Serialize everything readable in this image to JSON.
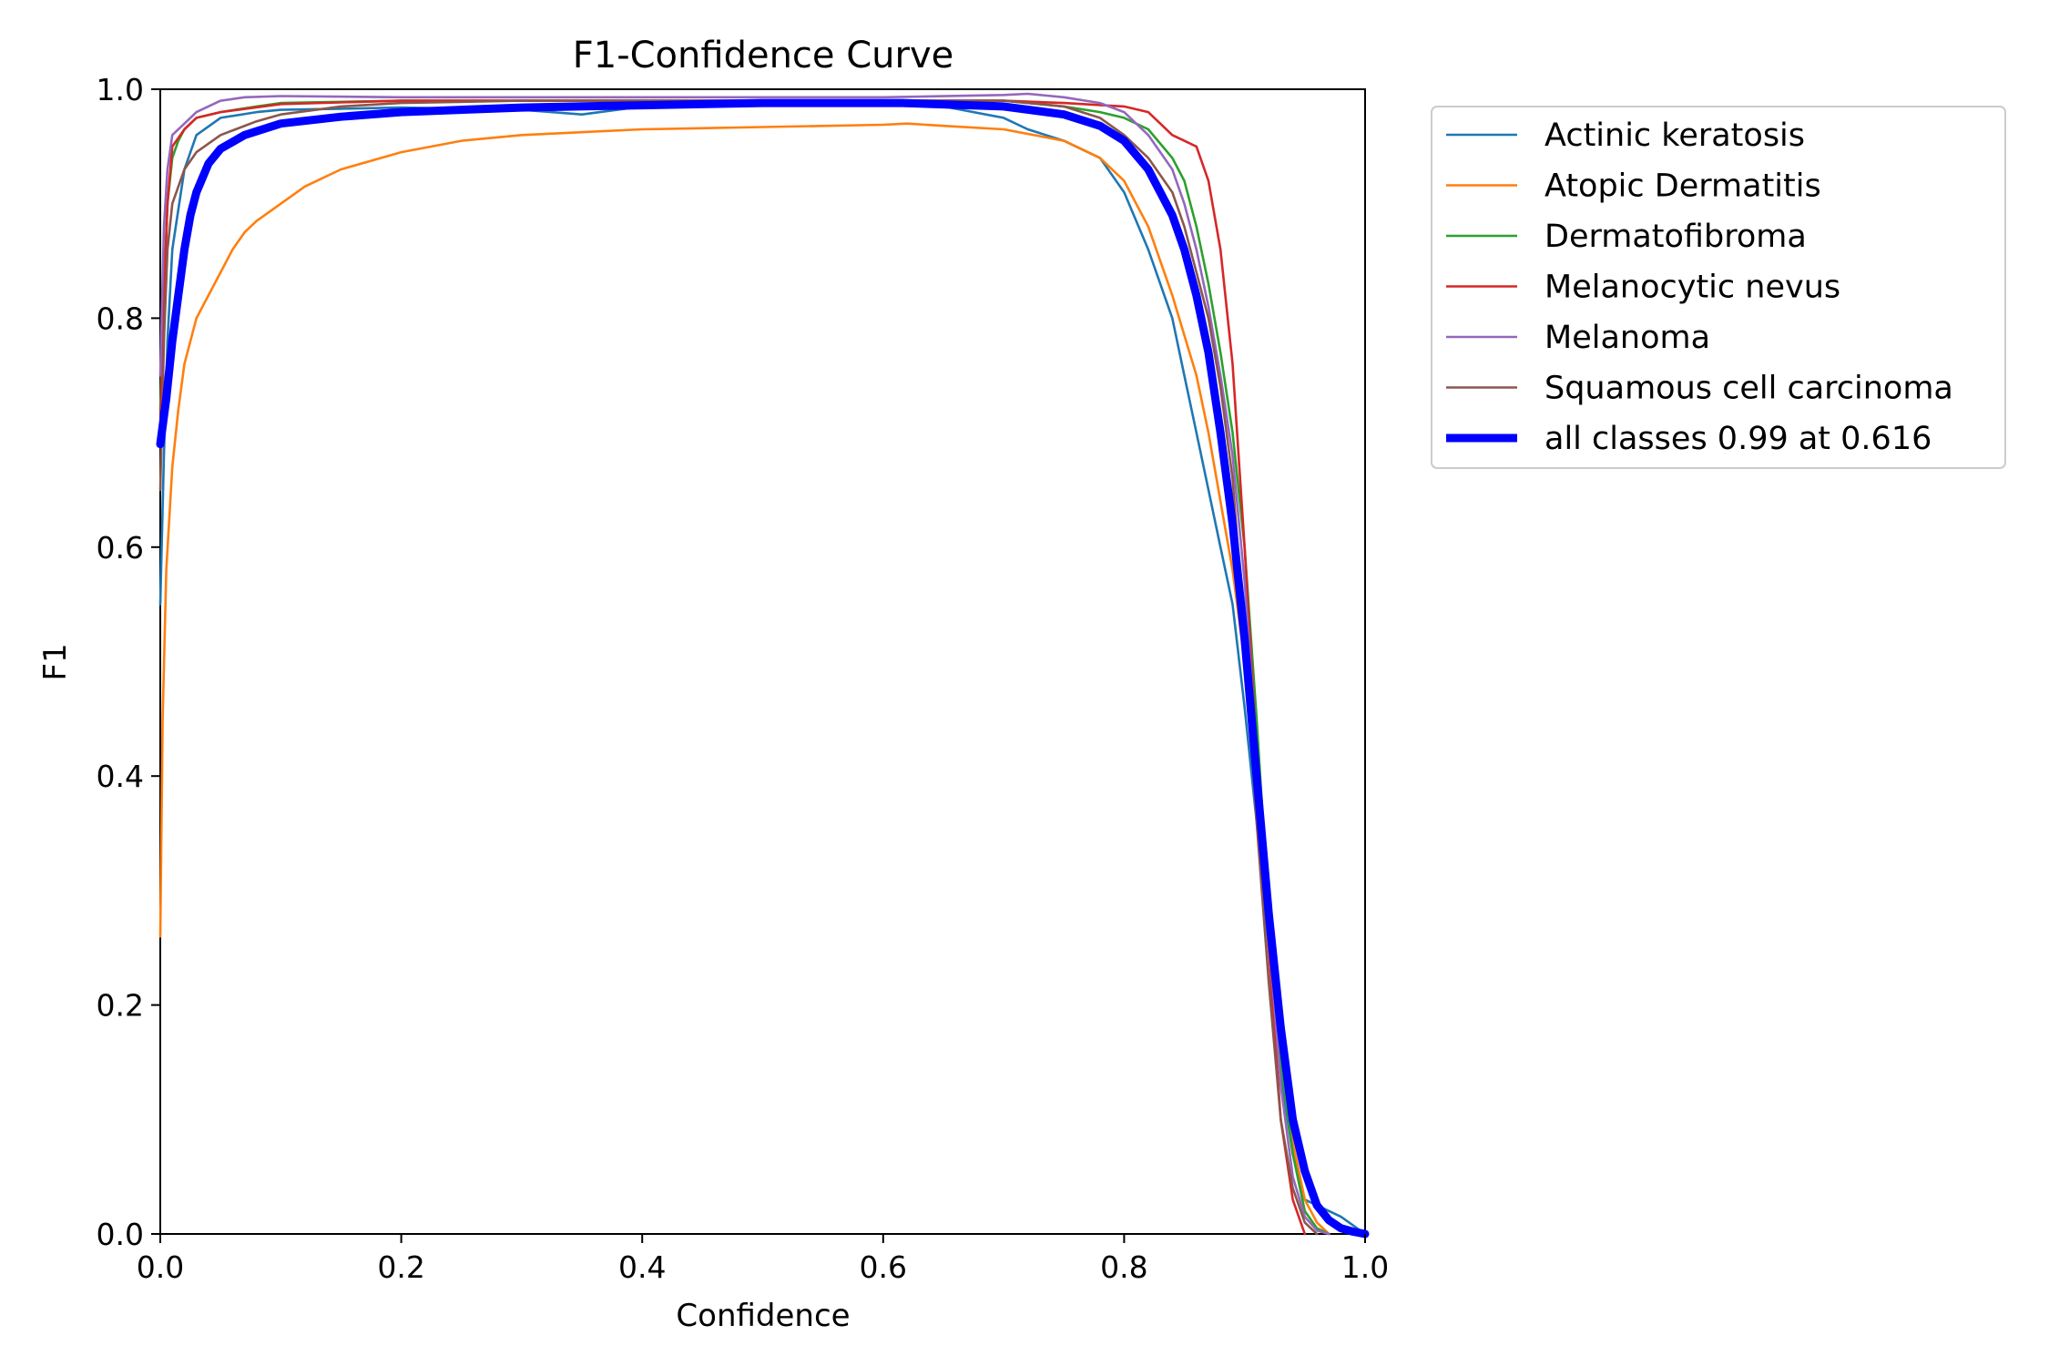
{
  "chart_data": {
    "type": "line",
    "title": "F1-Confidence Curve",
    "xlabel": "Confidence",
    "ylabel": "F1",
    "xlim": [
      0.0,
      1.0
    ],
    "ylim": [
      0.0,
      1.0
    ],
    "xticks": [
      "0.0",
      "0.2",
      "0.4",
      "0.6",
      "0.8",
      "1.0"
    ],
    "yticks": [
      "0.0",
      "0.2",
      "0.4",
      "0.6",
      "0.8",
      "1.0"
    ],
    "grid": false,
    "legend_position": "outside-top-right",
    "series": [
      {
        "name": "Actinic keratosis",
        "color": "#1f77b4",
        "x": [
          0.0,
          0.003,
          0.006,
          0.01,
          0.02,
          0.03,
          0.05,
          0.08,
          0.1,
          0.15,
          0.2,
          0.3,
          0.35,
          0.4,
          0.5,
          0.6,
          0.65,
          0.7,
          0.72,
          0.75,
          0.78,
          0.8,
          0.82,
          0.84,
          0.85,
          0.86,
          0.87,
          0.88,
          0.89,
          0.9,
          0.91,
          0.92,
          0.93,
          0.94,
          0.95,
          0.96,
          0.98,
          1.0
        ],
        "y": [
          0.55,
          0.68,
          0.78,
          0.86,
          0.93,
          0.96,
          0.975,
          0.98,
          0.982,
          0.983,
          0.984,
          0.982,
          0.978,
          0.985,
          0.99,
          0.99,
          0.985,
          0.975,
          0.965,
          0.955,
          0.94,
          0.91,
          0.86,
          0.8,
          0.75,
          0.7,
          0.65,
          0.6,
          0.55,
          0.46,
          0.36,
          0.25,
          0.14,
          0.07,
          0.03,
          0.025,
          0.015,
          0.0
        ]
      },
      {
        "name": "Atopic Dermatitis",
        "color": "#ff7f0e",
        "x": [
          0.0,
          0.002,
          0.005,
          0.01,
          0.015,
          0.02,
          0.03,
          0.04,
          0.05,
          0.06,
          0.07,
          0.08,
          0.1,
          0.12,
          0.15,
          0.2,
          0.25,
          0.3,
          0.4,
          0.5,
          0.6,
          0.62,
          0.65,
          0.7,
          0.75,
          0.78,
          0.8,
          0.82,
          0.84,
          0.86,
          0.87,
          0.88,
          0.89,
          0.9,
          0.91,
          0.92,
          0.93,
          0.94,
          0.95,
          0.96,
          0.97
        ],
        "y": [
          0.26,
          0.45,
          0.58,
          0.67,
          0.72,
          0.76,
          0.8,
          0.82,
          0.84,
          0.86,
          0.875,
          0.885,
          0.9,
          0.915,
          0.93,
          0.945,
          0.955,
          0.96,
          0.965,
          0.967,
          0.969,
          0.97,
          0.968,
          0.965,
          0.955,
          0.94,
          0.92,
          0.88,
          0.82,
          0.75,
          0.7,
          0.64,
          0.58,
          0.5,
          0.4,
          0.28,
          0.16,
          0.08,
          0.03,
          0.01,
          0.0
        ]
      },
      {
        "name": "Dermatofibroma",
        "color": "#2ca02c",
        "x": [
          0.0,
          0.003,
          0.006,
          0.01,
          0.015,
          0.02,
          0.03,
          0.05,
          0.08,
          0.1,
          0.2,
          0.3,
          0.4,
          0.5,
          0.6,
          0.7,
          0.75,
          0.78,
          0.8,
          0.82,
          0.84,
          0.85,
          0.86,
          0.87,
          0.88,
          0.89,
          0.9,
          0.91,
          0.92,
          0.93,
          0.94,
          0.95,
          0.96,
          0.97
        ],
        "y": [
          0.72,
          0.82,
          0.9,
          0.94,
          0.955,
          0.965,
          0.975,
          0.98,
          0.985,
          0.988,
          0.99,
          0.99,
          0.99,
          0.99,
          0.99,
          0.99,
          0.985,
          0.98,
          0.975,
          0.965,
          0.94,
          0.92,
          0.88,
          0.83,
          0.77,
          0.7,
          0.6,
          0.45,
          0.28,
          0.15,
          0.07,
          0.02,
          0.005,
          0.0
        ]
      },
      {
        "name": "Melanocytic nevus",
        "color": "#d62728",
        "x": [
          0.0,
          0.003,
          0.006,
          0.01,
          0.02,
          0.03,
          0.05,
          0.1,
          0.2,
          0.3,
          0.4,
          0.5,
          0.6,
          0.7,
          0.75,
          0.8,
          0.82,
          0.83,
          0.84,
          0.85,
          0.86,
          0.87,
          0.88,
          0.89,
          0.9,
          0.91,
          0.92,
          0.93,
          0.94,
          0.95
        ],
        "y": [
          0.7,
          0.82,
          0.9,
          0.95,
          0.965,
          0.975,
          0.98,
          0.987,
          0.99,
          0.99,
          0.99,
          0.99,
          0.99,
          0.99,
          0.988,
          0.985,
          0.98,
          0.97,
          0.96,
          0.955,
          0.95,
          0.92,
          0.86,
          0.76,
          0.6,
          0.42,
          0.25,
          0.1,
          0.03,
          0.0
        ]
      },
      {
        "name": "Melanoma",
        "color": "#9467bd",
        "x": [
          0.0,
          0.003,
          0.006,
          0.01,
          0.02,
          0.03,
          0.05,
          0.07,
          0.1,
          0.2,
          0.3,
          0.4,
          0.5,
          0.6,
          0.7,
          0.72,
          0.75,
          0.78,
          0.8,
          0.82,
          0.84,
          0.85,
          0.86,
          0.87,
          0.88,
          0.89,
          0.9,
          0.91,
          0.92,
          0.93,
          0.94,
          0.95,
          0.96,
          0.97
        ],
        "y": [
          0.75,
          0.88,
          0.93,
          0.96,
          0.97,
          0.98,
          0.99,
          0.993,
          0.994,
          0.993,
          0.993,
          0.993,
          0.993,
          0.993,
          0.995,
          0.996,
          0.993,
          0.988,
          0.98,
          0.96,
          0.93,
          0.9,
          0.86,
          0.81,
          0.75,
          0.68,
          0.57,
          0.42,
          0.26,
          0.13,
          0.05,
          0.015,
          0.003,
          0.0
        ]
      },
      {
        "name": "Squamous cell carcinoma",
        "color": "#8c564b",
        "x": [
          0.0,
          0.003,
          0.006,
          0.01,
          0.02,
          0.03,
          0.05,
          0.08,
          0.1,
          0.15,
          0.2,
          0.3,
          0.4,
          0.5,
          0.6,
          0.7,
          0.75,
          0.78,
          0.8,
          0.82,
          0.84,
          0.85,
          0.86,
          0.87,
          0.88,
          0.89,
          0.9,
          0.91,
          0.92,
          0.93,
          0.94,
          0.95,
          0.96
        ],
        "y": [
          0.65,
          0.78,
          0.86,
          0.9,
          0.93,
          0.945,
          0.96,
          0.972,
          0.978,
          0.985,
          0.988,
          0.99,
          0.99,
          0.99,
          0.99,
          0.99,
          0.985,
          0.975,
          0.96,
          0.94,
          0.91,
          0.88,
          0.84,
          0.8,
          0.74,
          0.66,
          0.52,
          0.36,
          0.22,
          0.1,
          0.04,
          0.01,
          0.0
        ]
      },
      {
        "name": "all classes 0.99 at 0.616",
        "color": "#0000ff",
        "bold": true,
        "x": [
          0.0,
          0.005,
          0.01,
          0.015,
          0.02,
          0.025,
          0.03,
          0.04,
          0.05,
          0.07,
          0.1,
          0.15,
          0.2,
          0.3,
          0.4,
          0.5,
          0.616,
          0.7,
          0.75,
          0.78,
          0.8,
          0.82,
          0.84,
          0.85,
          0.86,
          0.87,
          0.88,
          0.89,
          0.9,
          0.91,
          0.92,
          0.93,
          0.94,
          0.95,
          0.96,
          0.97,
          0.98,
          0.99,
          1.0
        ],
        "y": [
          0.69,
          0.73,
          0.78,
          0.82,
          0.86,
          0.89,
          0.91,
          0.935,
          0.948,
          0.96,
          0.97,
          0.976,
          0.98,
          0.984,
          0.986,
          0.988,
          0.988,
          0.985,
          0.978,
          0.968,
          0.955,
          0.93,
          0.89,
          0.86,
          0.82,
          0.77,
          0.7,
          0.62,
          0.52,
          0.4,
          0.28,
          0.18,
          0.1,
          0.055,
          0.025,
          0.012,
          0.005,
          0.002,
          0.0
        ]
      }
    ]
  }
}
